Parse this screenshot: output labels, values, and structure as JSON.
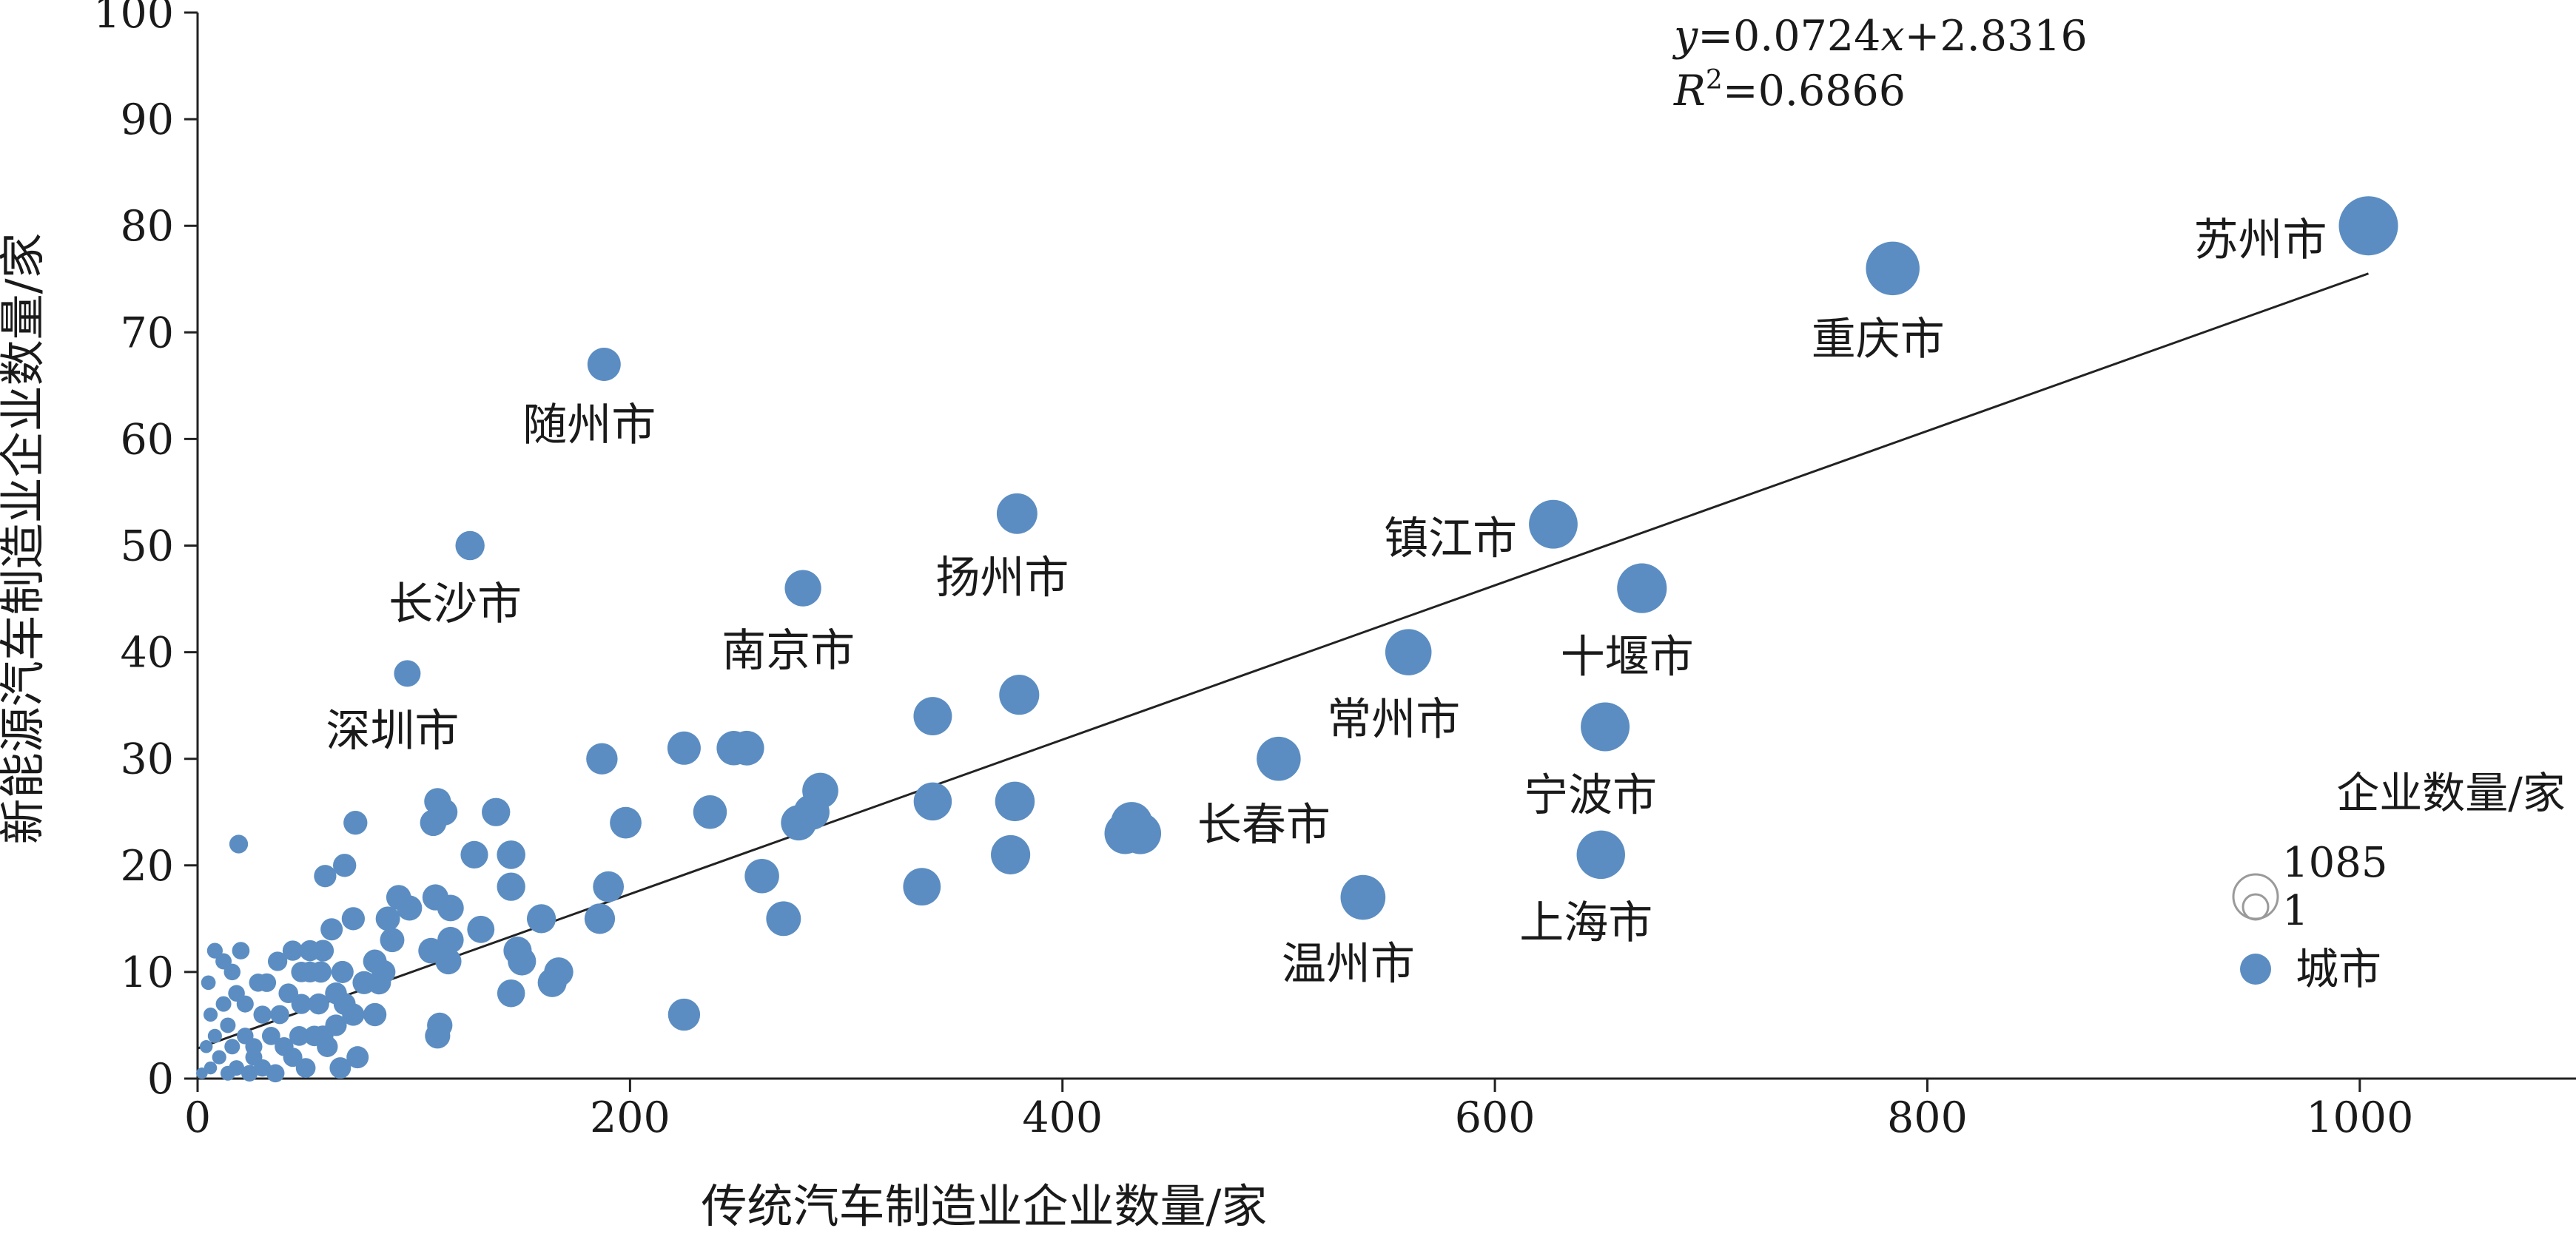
{
  "chart_data": {
    "type": "scatter",
    "xlabel": "传统汽车制造业企业数量/家",
    "ylabel": "新能源汽车制造业企业数量/家",
    "xlim": [
      0,
      1100
    ],
    "ylim": [
      0,
      100
    ],
    "x_ticks": [
      0,
      200,
      400,
      600,
      800,
      1000
    ],
    "y_ticks": [
      0,
      10,
      20,
      30,
      40,
      50,
      60,
      70,
      80,
      90,
      100
    ],
    "grid": false,
    "point_color": "#5b8dc2",
    "trendline": {
      "slope": 0.0724,
      "intercept": 2.8316,
      "x_range": [
        0,
        1004
      ],
      "color": "#222222",
      "equation_label": {
        "y": "y",
        "eq": "=0.0724",
        "x": "x",
        "rest": "+2.8316"
      },
      "r2_label": {
        "r": "R",
        "sup": "2",
        "rest": "=0.6866"
      }
    },
    "size_legend": {
      "title": "企业数量/家",
      "max_label": "1085",
      "min_label": "1",
      "series_label": "城市",
      "max_value": 1085,
      "min_value": 1
    },
    "labeled_points": [
      {
        "label": "苏州市",
        "x": 1004,
        "y": 80,
        "size": 1085,
        "label_pos": "left"
      },
      {
        "label": "重庆市",
        "x": 784,
        "y": 76,
        "size": 860,
        "label_pos": "below"
      },
      {
        "label": "随州市",
        "x": 188,
        "y": 67,
        "size": 255,
        "label_pos": "below"
      },
      {
        "label": "扬州市",
        "x": 379,
        "y": 53,
        "size": 432,
        "label_pos": "below"
      },
      {
        "label": "镇江市",
        "x": 627,
        "y": 52,
        "size": 679,
        "label_pos": "left"
      },
      {
        "label": "长沙市",
        "x": 126,
        "y": 50,
        "size": 176,
        "label_pos": "below"
      },
      {
        "label": "南京市",
        "x": 280,
        "y": 46,
        "size": 326,
        "label_pos": "below"
      },
      {
        "label": "十堰市",
        "x": 668,
        "y": 46,
        "size": 714,
        "label_pos": "below"
      },
      {
        "label": "常州市",
        "x": 560,
        "y": 40,
        "size": 600,
        "label_pos": "below"
      },
      {
        "label": "深圳市",
        "x": 97,
        "y": 38,
        "size": 135,
        "label_pos": "below"
      },
      {
        "label": "宁波市",
        "x": 651,
        "y": 33,
        "size": 684,
        "label_pos": "below"
      },
      {
        "label": "长春市",
        "x": 500,
        "y": 30,
        "size": 530,
        "label_pos": "below"
      },
      {
        "label": "上海市",
        "x": 649,
        "y": 21,
        "size": 670,
        "label_pos": "below"
      },
      {
        "label": "温州市",
        "x": 539,
        "y": 17,
        "size": 556,
        "label_pos": "below"
      }
    ],
    "points": [
      [
        380,
        36,
        416
      ],
      [
        340,
        34,
        374
      ],
      [
        187,
        30,
        217
      ],
      [
        225,
        31,
        256
      ],
      [
        248,
        31,
        279
      ],
      [
        254,
        31,
        285
      ],
      [
        288,
        27,
        315
      ],
      [
        198,
        24,
        222
      ],
      [
        237,
        25,
        262
      ],
      [
        278,
        24,
        302
      ],
      [
        284,
        25,
        309
      ],
      [
        340,
        26,
        366
      ],
      [
        378,
        26,
        404
      ],
      [
        376,
        21,
        397
      ],
      [
        429,
        23,
        452
      ],
      [
        432,
        24,
        456
      ],
      [
        436,
        23,
        459
      ],
      [
        335,
        18,
        353
      ],
      [
        261,
        19,
        280
      ],
      [
        271,
        15,
        286
      ],
      [
        225,
        6,
        231
      ],
      [
        190,
        18,
        208
      ],
      [
        186,
        15,
        201
      ],
      [
        167,
        10,
        177
      ],
      [
        164,
        9,
        173
      ],
      [
        159,
        15,
        174
      ],
      [
        150,
        11,
        161
      ],
      [
        148,
        12,
        160
      ],
      [
        145,
        21,
        166
      ],
      [
        145,
        18,
        163
      ],
      [
        145,
        8,
        153
      ],
      [
        138,
        25,
        163
      ],
      [
        128,
        21,
        149
      ],
      [
        131,
        14,
        145
      ],
      [
        111,
        26,
        137
      ],
      [
        114,
        25,
        139
      ],
      [
        117,
        16,
        133
      ],
      [
        110,
        17,
        127
      ],
      [
        117,
        13,
        130
      ],
      [
        116,
        11,
        127
      ],
      [
        109,
        24,
        133
      ],
      [
        108,
        12,
        120
      ],
      [
        112,
        5,
        117
      ],
      [
        111,
        4,
        115
      ],
      [
        98,
        16,
        114
      ],
      [
        93,
        17,
        110
      ],
      [
        90,
        13,
        103
      ],
      [
        88,
        15,
        103
      ],
      [
        73,
        24,
        97
      ],
      [
        77,
        9,
        86
      ],
      [
        82,
        11,
        93
      ],
      [
        86,
        10,
        96
      ],
      [
        84,
        9,
        93
      ],
      [
        82,
        6,
        88
      ],
      [
        72,
        15,
        87
      ],
      [
        68,
        20,
        88
      ],
      [
        59,
        19,
        78
      ],
      [
        62,
        14,
        76
      ],
      [
        58,
        12,
        70
      ],
      [
        64,
        8,
        72
      ],
      [
        68,
        7,
        75
      ],
      [
        72,
        6,
        78
      ],
      [
        67,
        10,
        77
      ],
      [
        57,
        10,
        67
      ],
      [
        52,
        10,
        62
      ],
      [
        48,
        10,
        58
      ],
      [
        44,
        12,
        56
      ],
      [
        52,
        12,
        64
      ],
      [
        56,
        7,
        63
      ],
      [
        48,
        7,
        55
      ],
      [
        42,
        8,
        50
      ],
      [
        47,
        4,
        51
      ],
      [
        54,
        4,
        58
      ],
      [
        58,
        4,
        62
      ],
      [
        60,
        3,
        63
      ],
      [
        64,
        5,
        69
      ],
      [
        66,
        1,
        67
      ],
      [
        74,
        2,
        76
      ],
      [
        37,
        11,
        48
      ],
      [
        32,
        9,
        41
      ],
      [
        28,
        9,
        37
      ],
      [
        22,
        7,
        29
      ],
      [
        30,
        6,
        36
      ],
      [
        38,
        6,
        44
      ],
      [
        34,
        4,
        38
      ],
      [
        40,
        3,
        43
      ],
      [
        44,
        2,
        46
      ],
      [
        50,
        1,
        51
      ],
      [
        26,
        3,
        29
      ],
      [
        20,
        12,
        32
      ],
      [
        16,
        10,
        26
      ],
      [
        12,
        11,
        23
      ],
      [
        8,
        12,
        20
      ],
      [
        5,
        9,
        14
      ],
      [
        18,
        8,
        26
      ],
      [
        12,
        7,
        19
      ],
      [
        6,
        6,
        12
      ],
      [
        14,
        5,
        19
      ],
      [
        22,
        4,
        26
      ],
      [
        8,
        4,
        12
      ],
      [
        4,
        3,
        7
      ],
      [
        16,
        3,
        19
      ],
      [
        26,
        2,
        28
      ],
      [
        10,
        2,
        12
      ],
      [
        18,
        1,
        19
      ],
      [
        30,
        1,
        31
      ],
      [
        6,
        1,
        7
      ],
      [
        2,
        0.5,
        3
      ],
      [
        14,
        0.5,
        15
      ],
      [
        24,
        0.5,
        25
      ],
      [
        36,
        0.5,
        37
      ],
      [
        19,
        22,
        41
      ]
    ]
  }
}
